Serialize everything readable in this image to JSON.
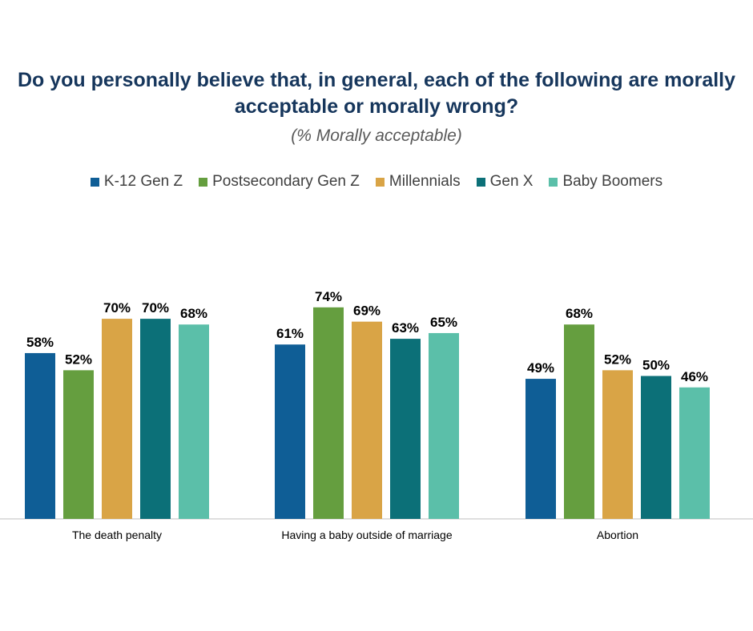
{
  "chart_data": {
    "type": "bar",
    "title": "Do you personally believe that, in general, each of the following are morally acceptable or morally wrong?",
    "subtitle": "(% Morally acceptable)",
    "categories": [
      "The death penalty",
      "Having a baby outside of marriage",
      "Abortion"
    ],
    "series": [
      {
        "name": "K-12 Gen Z",
        "color": "#0f5e96",
        "values": [
          58,
          61,
          49
        ]
      },
      {
        "name": "Postsecondary Gen Z",
        "color": "#659e3f",
        "values": [
          52,
          74,
          68
        ]
      },
      {
        "name": "Millennials",
        "color": "#d9a446",
        "values": [
          70,
          69,
          52
        ]
      },
      {
        "name": "Gen X",
        "color": "#0c7078",
        "values": [
          70,
          63,
          50
        ]
      },
      {
        "name": "Baby Boomers",
        "color": "#5bbfa9",
        "values": [
          68,
          65,
          46
        ]
      }
    ],
    "value_suffix": "%",
    "ylim": [
      0,
      100
    ],
    "grid": false,
    "legend_position": "top"
  }
}
